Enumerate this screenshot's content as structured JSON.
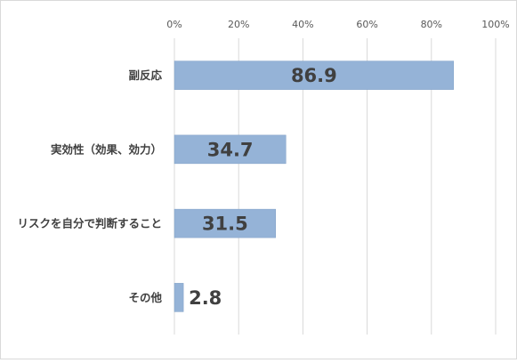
{
  "chart_data": {
    "type": "bar",
    "orientation": "horizontal",
    "title": "",
    "xlabel": "",
    "ylabel": "",
    "categories": [
      "副反応",
      "実効性（効果、効力）",
      "リスクを自分で判断すること",
      "その他"
    ],
    "values": [
      86.9,
      34.7,
      31.5,
      2.8
    ],
    "data_labels": [
      "86.9",
      "34.7",
      "31.5",
      "2.8"
    ],
    "xlim": [
      0,
      100
    ],
    "x_ticks": [
      "0%",
      "20%",
      "40%",
      "60%",
      "80%",
      "100%"
    ],
    "x_tick_values": [
      0,
      20,
      40,
      60,
      80,
      100
    ],
    "grid": true,
    "legend": "none",
    "colors": {
      "bar": "#95b3d7",
      "bar_stroke": "#7f9fc6",
      "grid": "#d9d9d9",
      "text": "#404040"
    }
  }
}
